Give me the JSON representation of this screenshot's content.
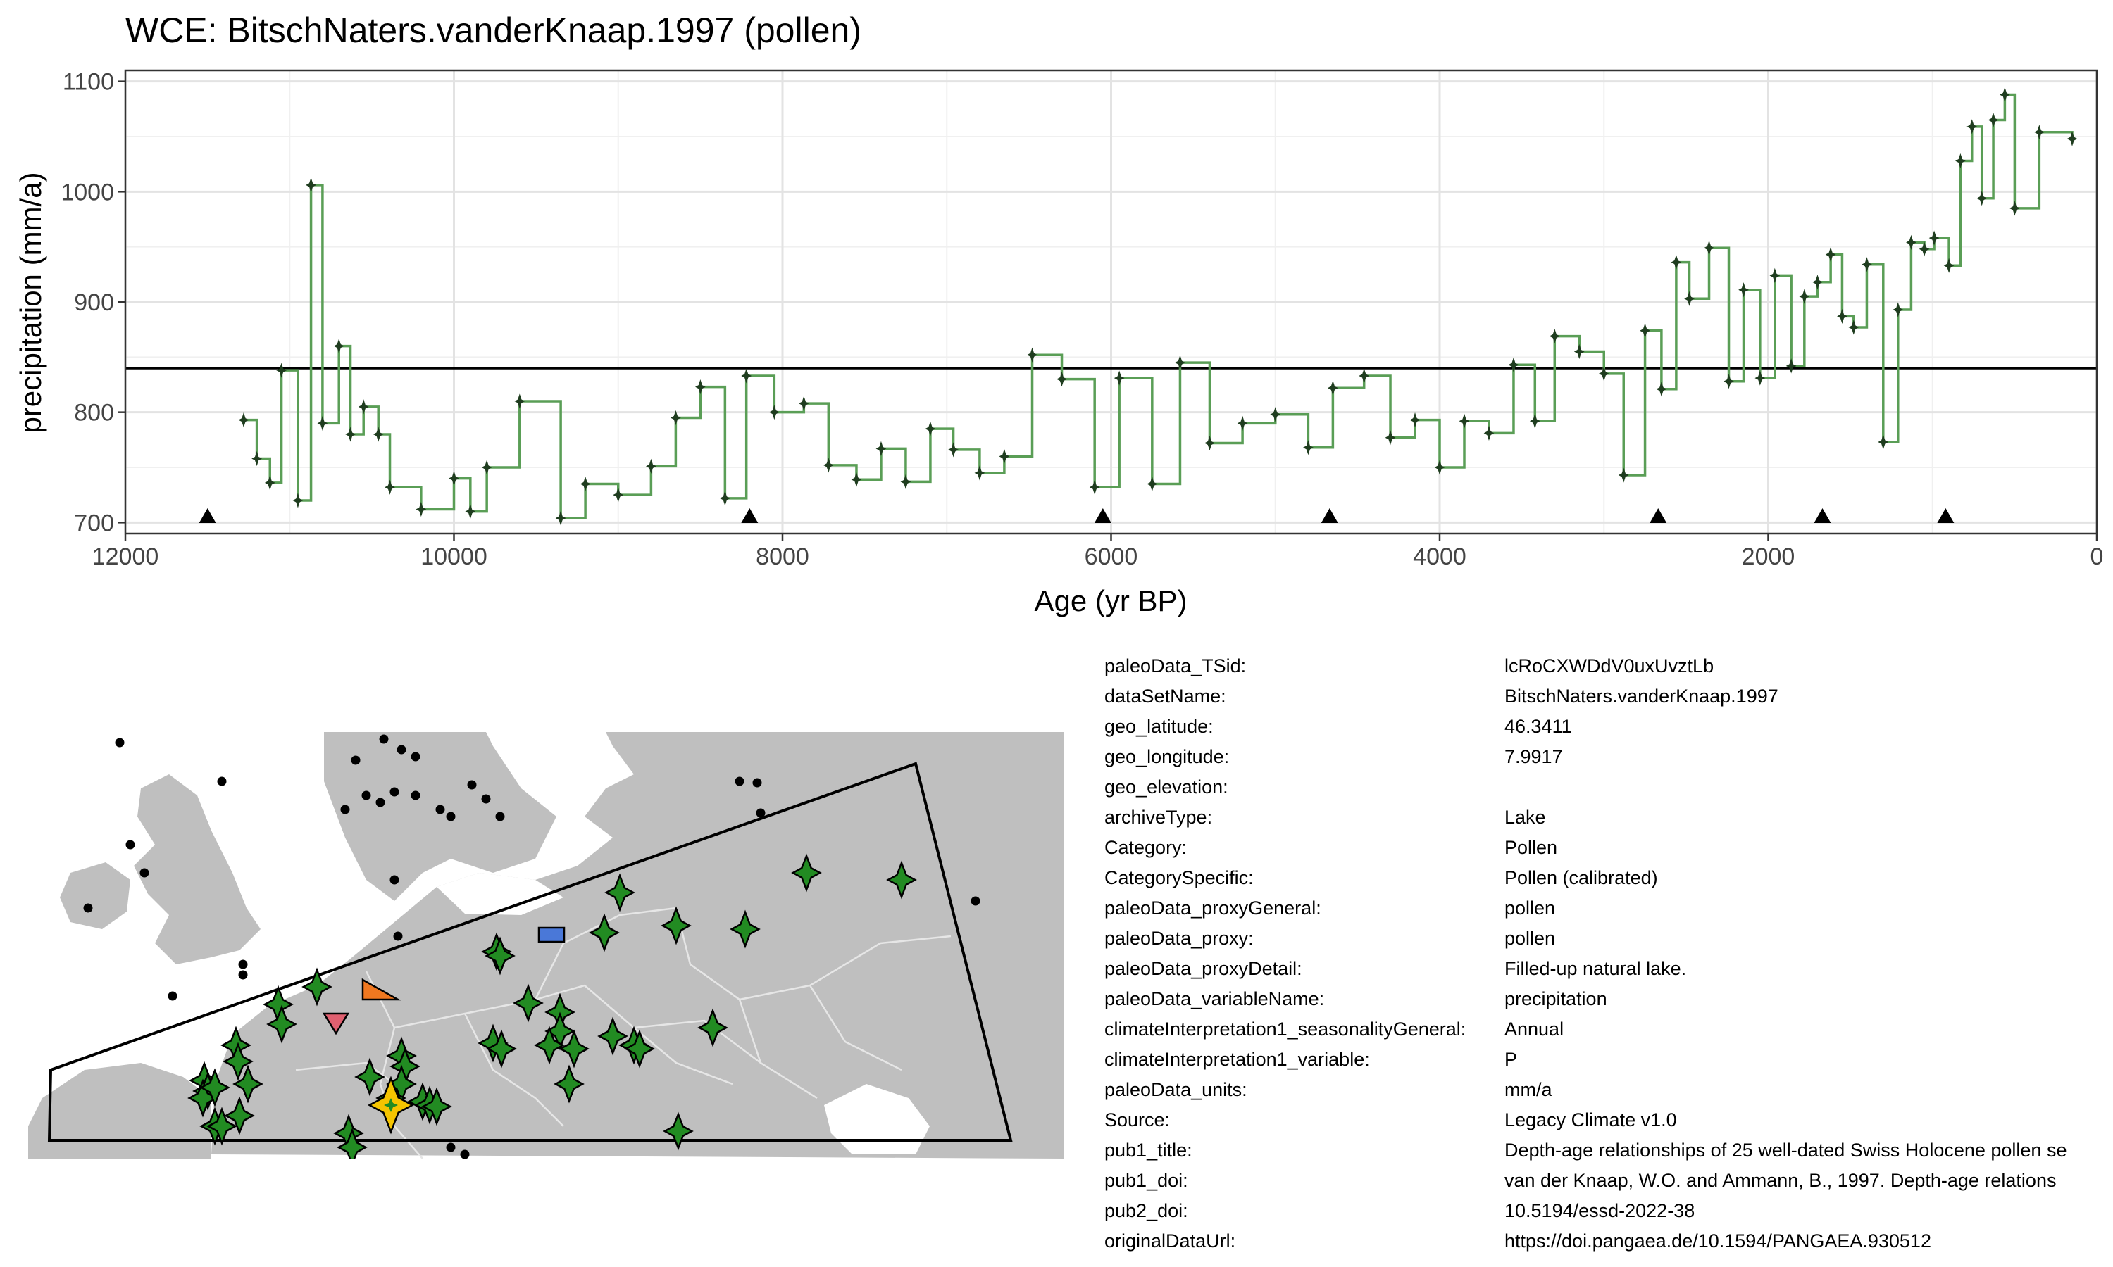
{
  "chart_data": {
    "type": "line",
    "title": "WCE: BitschNaters.vanderKnaap.1997 (pollen)",
    "xlabel": "Age (yr BP)",
    "ylabel": "precipitation (mm/a)",
    "xlim": [
      12000,
      0
    ],
    "ylim": [
      690,
      1110
    ],
    "x_reversed": true,
    "grid": true,
    "xticks": [
      12000,
      10000,
      8000,
      6000,
      4000,
      2000,
      0
    ],
    "yticks": [
      700,
      800,
      900,
      1000,
      1100
    ],
    "xtick_labels": [
      "12000",
      "10000",
      "8000",
      "6000",
      "4000",
      "2000",
      "0"
    ],
    "ytick_labels": [
      "700",
      "800",
      "900",
      "1000",
      "1100"
    ],
    "reference_line": 840,
    "line_style": "step",
    "line_color": "#5a9e56",
    "point_color": "#1f3d1f",
    "x": [
      11280,
      11200,
      11120,
      11050,
      10950,
      10870,
      10800,
      10700,
      10630,
      10550,
      10460,
      10390,
      10200,
      10000,
      9900,
      9800,
      9600,
      9350,
      9200,
      9000,
      8800,
      8650,
      8500,
      8350,
      8220,
      8050,
      7870,
      7720,
      7550,
      7400,
      7250,
      7100,
      6960,
      6800,
      6650,
      6480,
      6300,
      6100,
      5950,
      5750,
      5580,
      5400,
      5200,
      5000,
      4800,
      4650,
      4460,
      4300,
      4150,
      4000,
      3850,
      3700,
      3550,
      3420,
      3300,
      3150,
      3000,
      2880,
      2750,
      2650,
      2560,
      2480,
      2360,
      2240,
      2150,
      2050,
      1960,
      1860,
      1780,
      1700,
      1620,
      1550,
      1480,
      1400,
      1300,
      1210,
      1130,
      1050,
      990,
      900,
      830,
      760,
      700,
      630,
      560,
      500,
      350,
      150
    ],
    "y": [
      793,
      758,
      736,
      838,
      720,
      1006,
      790,
      860,
      780,
      805,
      780,
      732,
      712,
      740,
      710,
      750,
      810,
      704,
      735,
      725,
      751,
      795,
      823,
      722,
      833,
      800,
      808,
      752,
      739,
      767,
      737,
      785,
      766,
      745,
      760,
      852,
      830,
      732,
      831,
      735,
      845,
      772,
      790,
      798,
      768,
      822,
      833,
      777,
      793,
      750,
      792,
      781,
      843,
      792,
      869,
      855,
      835,
      743,
      874,
      821,
      936,
      903,
      949,
      828,
      911,
      831,
      924,
      842,
      905,
      918,
      943,
      887,
      877,
      934,
      773,
      893,
      954,
      948,
      958,
      933,
      1028,
      1059,
      994,
      1065,
      1088,
      985,
      1054,
      1048
    ],
    "markers_x": [
      11500,
      8200,
      6050,
      4670,
      2670,
      1670,
      920
    ]
  },
  "map": {
    "land_color": "#bfbfbf",
    "border_color": "#e6e6e6",
    "site_color": "#228b22",
    "focus_site_color": "#f5c400"
  },
  "metadata": [
    {
      "key": "paleoData_TSid:",
      "value": "lcRoCXWDdV0uxUvztLb"
    },
    {
      "key": "dataSetName:",
      "value": "BitschNaters.vanderKnaap.1997"
    },
    {
      "key": "geo_latitude:",
      "value": "46.3411"
    },
    {
      "key": "geo_longitude:",
      "value": "7.9917"
    },
    {
      "key": "geo_elevation:",
      "value": ""
    },
    {
      "key": "archiveType:",
      "value": "Lake"
    },
    {
      "key": "Category:",
      "value": "Pollen"
    },
    {
      "key": "CategorySpecific:",
      "value": "Pollen (calibrated)"
    },
    {
      "key": "paleoData_proxyGeneral:",
      "value": "pollen"
    },
    {
      "key": "paleoData_proxy:",
      "value": "pollen"
    },
    {
      "key": "paleoData_proxyDetail:",
      "value": "Filled-up natural lake."
    },
    {
      "key": "paleoData_variableName:",
      "value": "precipitation"
    },
    {
      "key": "climateInterpretation1_seasonalityGeneral:",
      "value": "Annual"
    },
    {
      "key": "climateInterpretation1_variable:",
      "value": "P"
    },
    {
      "key": "paleoData_units:",
      "value": "mm/a"
    },
    {
      "key": "Source:",
      "value": "Legacy Climate v1.0"
    },
    {
      "key": "pub1_title:",
      "value": "Depth-age relationships of 25 well-dated Swiss Holocene pollen se"
    },
    {
      "key": "pub1_doi:",
      "value": "van der Knaap, W.O. and Ammann, B., 1997. Depth-age relations"
    },
    {
      "key": "pub2_doi:",
      "value": "10.5194/essd-2022-38"
    },
    {
      "key": "originalDataUrl:",
      "value": "https://doi.pangaea.de/10.1594/PANGAEA.930512"
    }
  ]
}
